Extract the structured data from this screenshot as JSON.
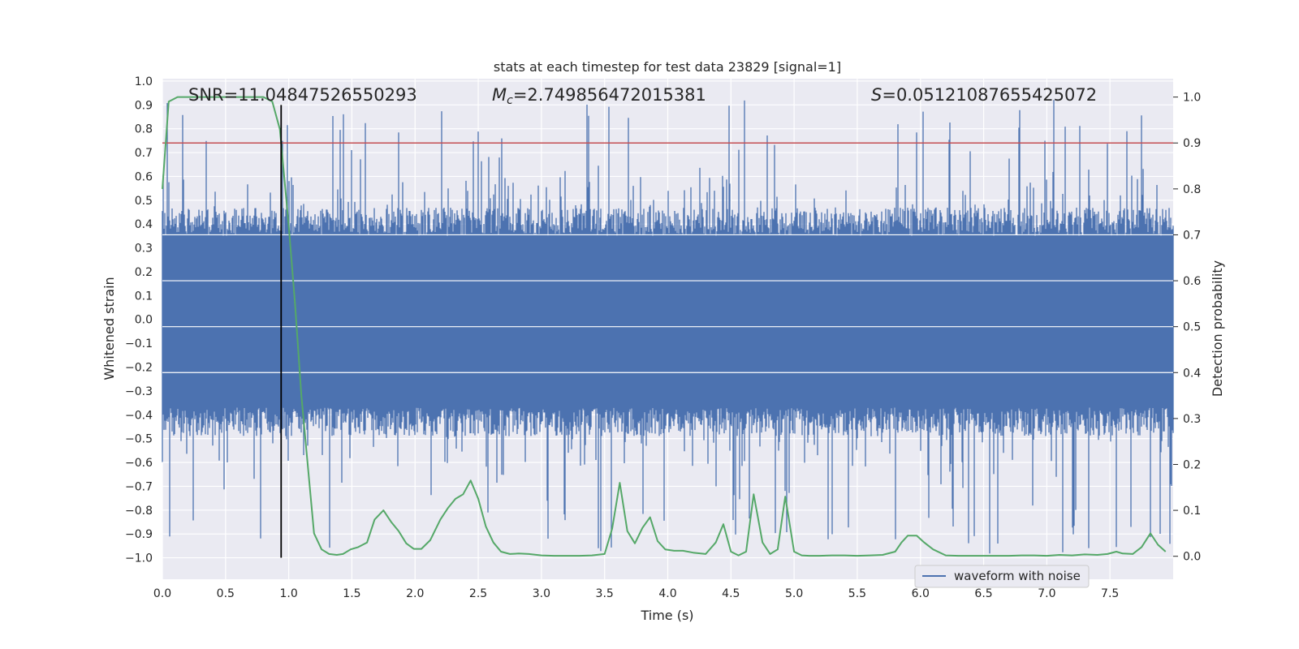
{
  "chart_data": {
    "type": "line",
    "title": "stats at each timestep for test data 23829 [signal=1]",
    "xlabel": "Time (s)",
    "ylabel_left": "Whitened strain",
    "ylabel_right": "Detection probability",
    "xlim": [
      0.0,
      8.0
    ],
    "ylim_left": [
      -1.09,
      1.01
    ],
    "ylim_right": [
      -0.05,
      1.04
    ],
    "x_ticks": [
      "0.0",
      "0.5",
      "1.0",
      "1.5",
      "2.0",
      "2.5",
      "3.0",
      "3.5",
      "4.0",
      "4.5",
      "5.0",
      "5.5",
      "6.0",
      "6.5",
      "7.0",
      "7.5"
    ],
    "y_ticks_left": [
      "1.0",
      "0.9",
      "0.8",
      "0.7",
      "0.6",
      "0.5",
      "0.4",
      "0.3",
      "0.2",
      "0.1",
      "0.0",
      "-0.1",
      "-0.2",
      "-0.3",
      "-0.4",
      "-0.5",
      "-0.6",
      "-0.7",
      "-0.8",
      "-0.9",
      "-1.0"
    ],
    "y_ticks_right": [
      "1.0",
      "0.9",
      "0.8",
      "0.7",
      "0.6",
      "0.5",
      "0.4",
      "0.3",
      "0.2",
      "0.1",
      "0.0"
    ],
    "grid": true,
    "annotations": {
      "snr": "SNR=11.04847526550293",
      "mc_symbol": "M",
      "mc_sub": "c",
      "mc_value": "=2.749856472015381",
      "s_symbol": "S",
      "s_value": "=0.05121087655425072"
    },
    "legend": {
      "label": "waveform with noise",
      "loc": "lower-right"
    },
    "vertical_line_x": 0.94,
    "threshold_level": 0.9,
    "waveform_envelope": {
      "typical_min": -0.42,
      "typical_max": 0.4,
      "peak_min": -0.99,
      "peak_max": 0.93
    },
    "series": [
      {
        "name": "detection probability",
        "color": "#55a868",
        "x": [
          0.0,
          0.05,
          0.12,
          0.2,
          0.3,
          0.4,
          0.5,
          0.6,
          0.7,
          0.8,
          0.87,
          0.93,
          1.0,
          1.05,
          1.1,
          1.15,
          1.2,
          1.26,
          1.32,
          1.38,
          1.43,
          1.49,
          1.55,
          1.62,
          1.68,
          1.75,
          1.81,
          1.87,
          1.93,
          1.99,
          2.05,
          2.12,
          2.2,
          2.26,
          2.32,
          2.38,
          2.44,
          2.5,
          2.56,
          2.62,
          2.68,
          2.75,
          2.82,
          2.9,
          3.0,
          3.1,
          3.2,
          3.3,
          3.4,
          3.5,
          3.56,
          3.62,
          3.68,
          3.74,
          3.8,
          3.86,
          3.92,
          3.98,
          4.05,
          4.12,
          4.2,
          4.3,
          4.38,
          4.44,
          4.5,
          4.56,
          4.62,
          4.68,
          4.75,
          4.81,
          4.87,
          4.93,
          5.0,
          5.06,
          5.12,
          5.2,
          5.3,
          5.4,
          5.5,
          5.6,
          5.7,
          5.8,
          5.85,
          5.9,
          5.97,
          6.03,
          6.1,
          6.2,
          6.3,
          6.4,
          6.5,
          6.6,
          6.7,
          6.8,
          6.9,
          7.0,
          7.1,
          7.2,
          7.3,
          7.4,
          7.48,
          7.55,
          7.6,
          7.68,
          7.75,
          7.82,
          7.88,
          7.94
        ],
        "values": [
          0.8,
          0.99,
          1.0,
          1.0,
          1.0,
          1.0,
          1.0,
          1.0,
          1.0,
          1.0,
          0.99,
          0.93,
          0.72,
          0.55,
          0.35,
          0.2,
          0.05,
          0.015,
          0.005,
          0.003,
          0.005,
          0.015,
          0.02,
          0.03,
          0.08,
          0.1,
          0.075,
          0.055,
          0.028,
          0.016,
          0.016,
          0.035,
          0.08,
          0.105,
          0.125,
          0.135,
          0.165,
          0.125,
          0.065,
          0.03,
          0.01,
          0.005,
          0.006,
          0.005,
          0.002,
          0.001,
          0.001,
          0.001,
          0.002,
          0.005,
          0.06,
          0.16,
          0.055,
          0.028,
          0.062,
          0.085,
          0.033,
          0.015,
          0.012,
          0.012,
          0.008,
          0.005,
          0.03,
          0.07,
          0.01,
          0.002,
          0.01,
          0.135,
          0.03,
          0.005,
          0.015,
          0.13,
          0.01,
          0.002,
          0.001,
          0.001,
          0.002,
          0.002,
          0.001,
          0.002,
          0.003,
          0.01,
          0.03,
          0.045,
          0.045,
          0.03,
          0.015,
          0.002,
          0.001,
          0.001,
          0.001,
          0.001,
          0.001,
          0.002,
          0.002,
          0.001,
          0.003,
          0.002,
          0.004,
          0.003,
          0.005,
          0.01,
          0.006,
          0.005,
          0.02,
          0.05,
          0.025,
          0.01
        ]
      }
    ]
  }
}
